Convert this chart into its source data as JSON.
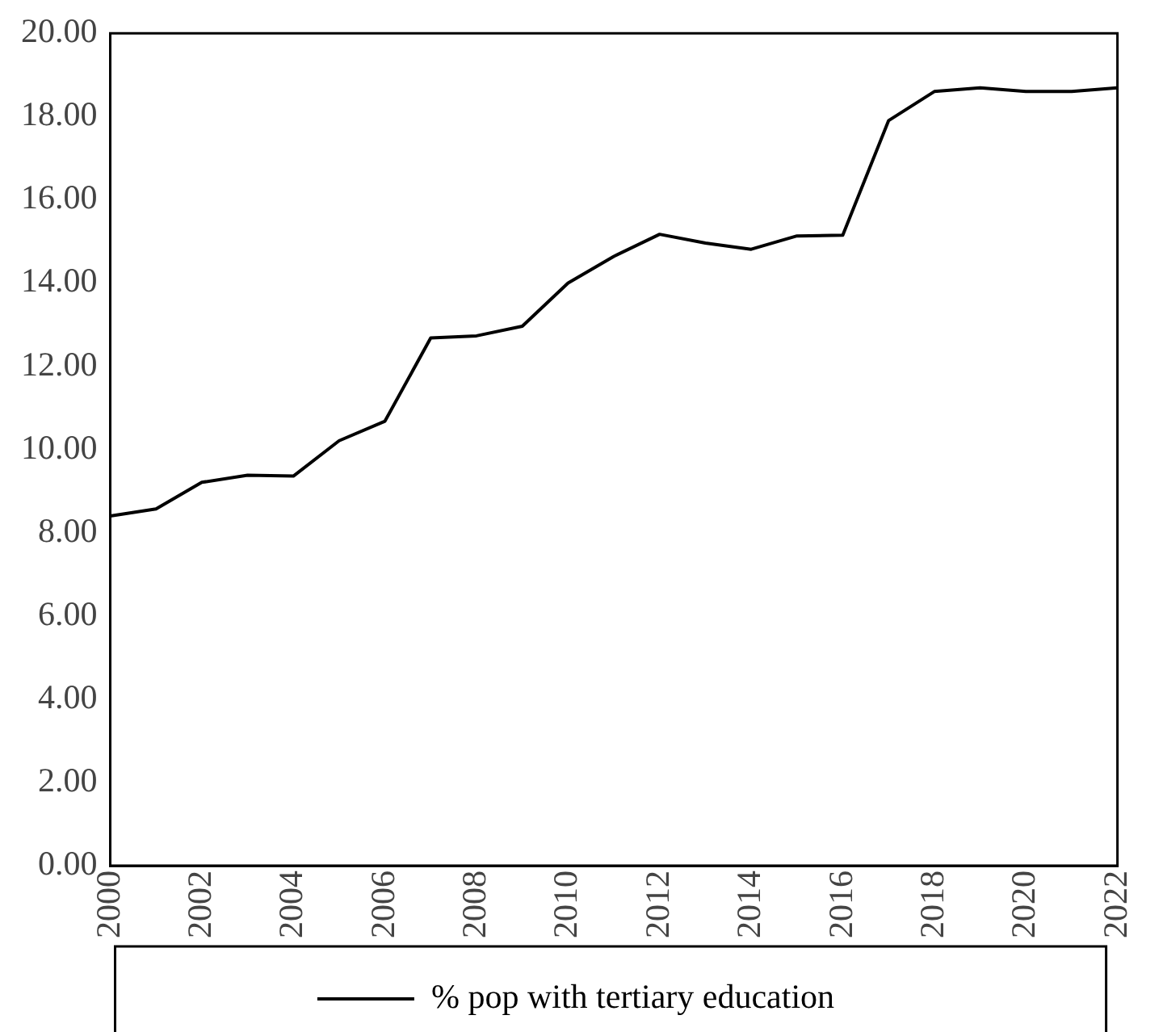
{
  "chart_data": {
    "type": "line",
    "x": [
      2000,
      2001,
      2002,
      2003,
      2004,
      2005,
      2006,
      2007,
      2008,
      2009,
      2010,
      2011,
      2012,
      2013,
      2014,
      2015,
      2016,
      2017,
      2018,
      2019,
      2020,
      2021,
      2022
    ],
    "series": [
      {
        "name": "% pop with tertiary education",
        "color": "#000000",
        "values": [
          8.4,
          8.57,
          9.21,
          9.38,
          9.36,
          10.21,
          10.68,
          12.68,
          12.73,
          12.96,
          14.0,
          14.64,
          15.17,
          14.96,
          14.81,
          15.13,
          15.15,
          17.9,
          18.6,
          18.69,
          18.6,
          18.6,
          18.69
        ]
      }
    ],
    "xlim": [
      2000,
      2022
    ],
    "xticks": [
      2000,
      2002,
      2004,
      2006,
      2008,
      2010,
      2012,
      2014,
      2016,
      2018,
      2020,
      2022
    ],
    "ylim": [
      0,
      20
    ],
    "yticks": [
      {
        "value": 0,
        "label": "0.00"
      },
      {
        "value": 2,
        "label": "2.00"
      },
      {
        "value": 4,
        "label": "4.00"
      },
      {
        "value": 6,
        "label": "6.00"
      },
      {
        "value": 8,
        "label": "8.00"
      },
      {
        "value": 10,
        "label": "10.00"
      },
      {
        "value": 12,
        "label": "12.00"
      },
      {
        "value": 14,
        "label": "14.00"
      },
      {
        "value": 16,
        "label": "16.00"
      },
      {
        "value": 18,
        "label": "18.00"
      },
      {
        "value": 20,
        "label": "20.00"
      }
    ],
    "grid": false,
    "legend": "bottom",
    "marker": "none",
    "line_style": "solid"
  }
}
